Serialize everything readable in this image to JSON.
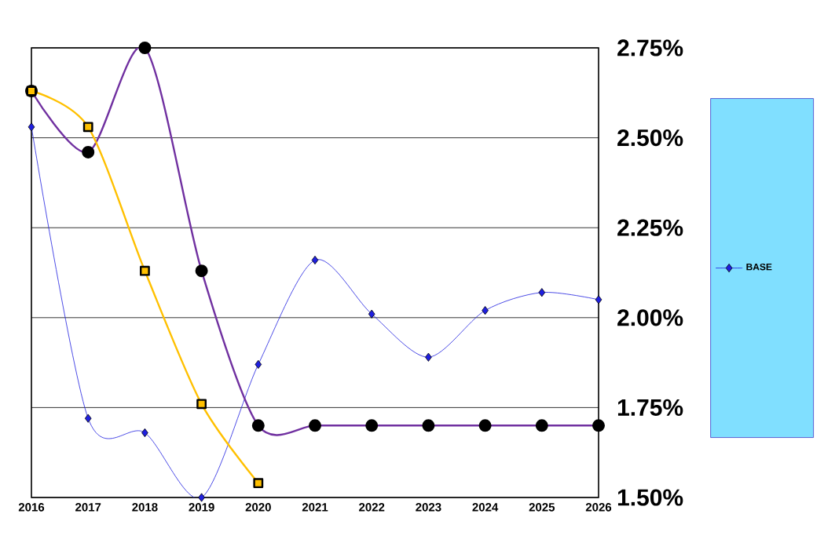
{
  "chart_data": {
    "type": "line",
    "categories": [
      "2016",
      "2017",
      "2018",
      "2019",
      "2020",
      "2021",
      "2022",
      "2023",
      "2024",
      "2025",
      "2026"
    ],
    "series": [
      {
        "name": "BASE",
        "color": "#1f1fe0",
        "marker": "diamond",
        "values": [
          2.53,
          1.72,
          1.68,
          1.5,
          1.87,
          2.16,
          2.01,
          1.89,
          2.02,
          2.07,
          2.05
        ]
      },
      {
        "color": "#7030a0",
        "marker": "circle",
        "values": [
          2.63,
          2.46,
          2.75,
          2.13,
          1.7,
          1.7,
          1.7,
          1.7,
          1.7,
          1.7,
          1.7
        ]
      },
      {
        "color": "#ffc000",
        "marker": "square",
        "values": [
          2.63,
          2.53,
          2.13,
          1.76,
          1.54,
          null,
          null,
          null,
          null,
          null,
          null
        ]
      }
    ],
    "ylim": [
      1.5,
      2.75
    ],
    "yticks": [
      {
        "value": 1.5,
        "label": "1.50%"
      },
      {
        "value": 1.75,
        "label": "1.75%"
      },
      {
        "value": 2.0,
        "label": "2.00%"
      },
      {
        "value": 2.25,
        "label": "2.25%"
      },
      {
        "value": 2.5,
        "label": "2.50%"
      },
      {
        "value": 2.75,
        "label": "2.75%"
      }
    ],
    "grid": "y",
    "legend": "right"
  }
}
